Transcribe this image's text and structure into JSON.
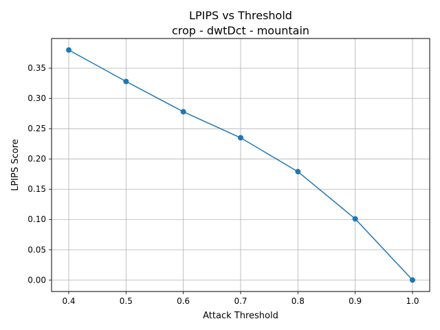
{
  "chart_data": {
    "type": "line",
    "title": "LPIPS vs Threshold",
    "subtitle": "crop - dwtDct - mountain",
    "xlabel": "Attack Threshold",
    "ylabel": "LPIPS Score",
    "x": [
      0.4,
      0.5,
      0.6,
      0.7,
      0.8,
      0.9,
      1.0
    ],
    "series": [
      {
        "values": [
          0.38,
          0.328,
          0.278,
          0.235,
          0.179,
          0.101,
          0.0
        ]
      }
    ],
    "xlim": [
      0.37,
      1.03
    ],
    "ylim": [
      -0.019,
      0.399
    ],
    "xticks": [
      0.4,
      0.5,
      0.6,
      0.7,
      0.8,
      0.9,
      1.0
    ],
    "xtick_labels": [
      "0.4",
      "0.5",
      "0.6",
      "0.7",
      "0.8",
      "0.9",
      "1.0"
    ],
    "yticks": [
      0.0,
      0.05,
      0.1,
      0.15,
      0.2,
      0.25,
      0.3,
      0.35
    ],
    "ytick_labels": [
      "0.00",
      "0.05",
      "0.10",
      "0.15",
      "0.20",
      "0.25",
      "0.30",
      "0.35"
    ],
    "grid": true,
    "line_color": "#1f77b4",
    "grid_color": "#b0b0b0",
    "marker": "circle"
  }
}
